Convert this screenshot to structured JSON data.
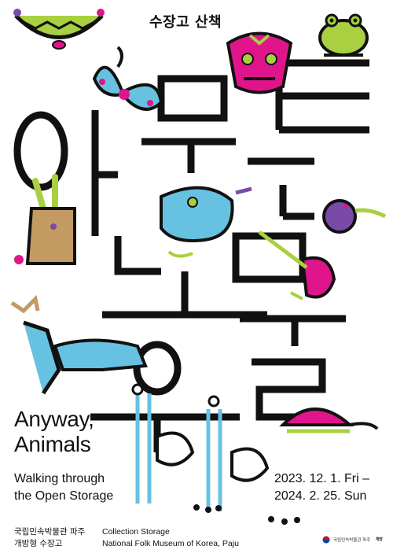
{
  "header": {
    "subtitle_kor": "수장고 산책"
  },
  "title": {
    "line1": "Anyway,",
    "line2": "Animals"
  },
  "subtitle": {
    "line1": "Walking through",
    "line2": "the Open Storage"
  },
  "dates": {
    "start": "2023. 12. 1. Fri –",
    "end": "2024. 2. 25. Sun"
  },
  "footer": {
    "kor_line1": "국립민속박물관 파주",
    "kor_line2": "개방형 수장고",
    "en_line1": "Collection Storage",
    "en_line2": "National Folk Museum of Korea, Paju"
  },
  "logo": {
    "text": "국립민속박물관 파주",
    "stamp": "개방"
  },
  "colors": {
    "ink": "#111111",
    "lime": "#a8d040",
    "magenta": "#e0158c",
    "sky": "#66c2e0",
    "purple": "#7a4aa8",
    "tan": "#c49a63"
  }
}
